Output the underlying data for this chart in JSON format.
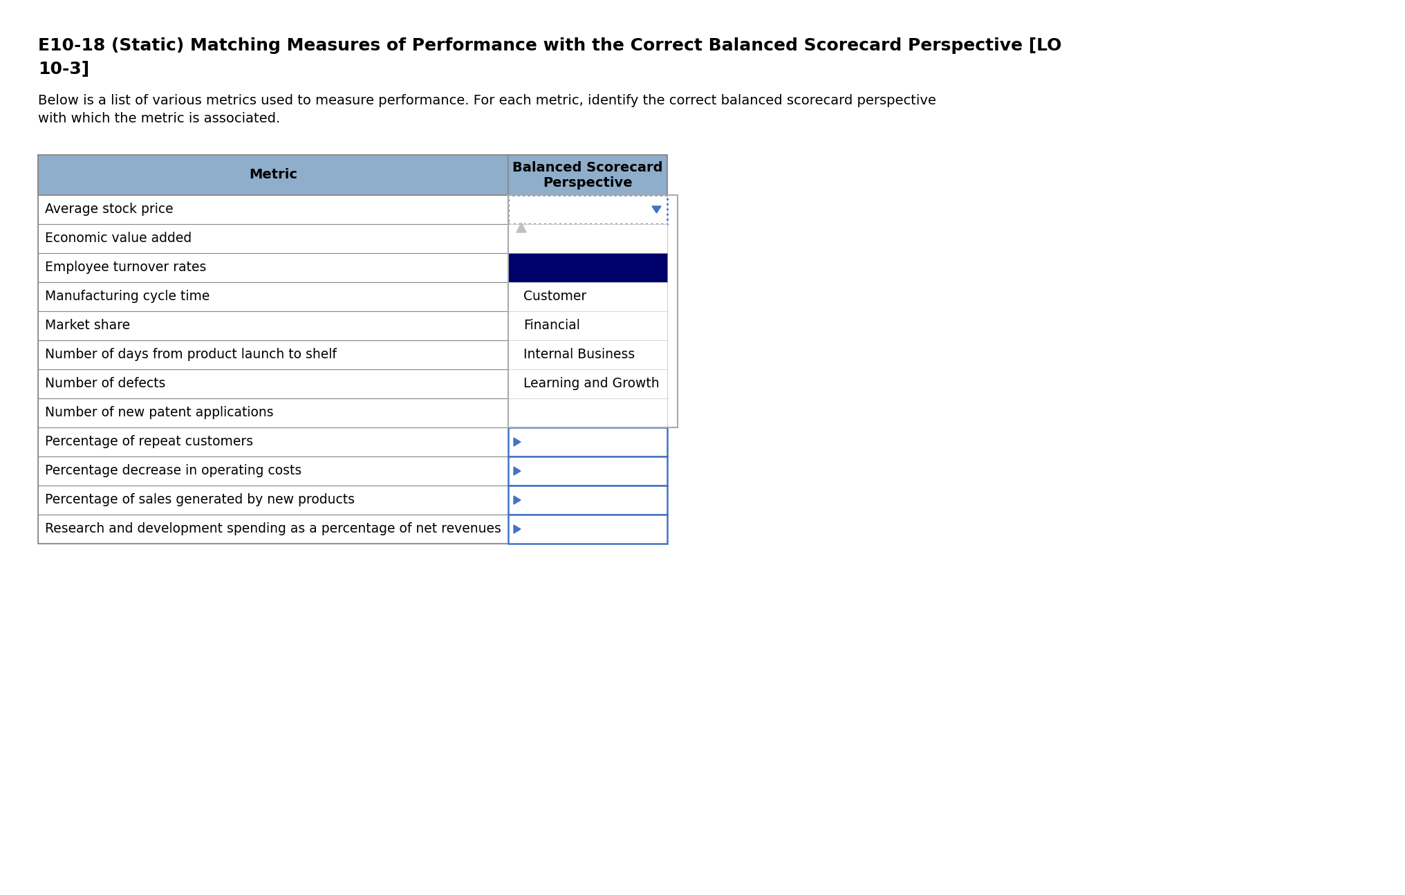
{
  "title_line1": "E10-18 (Static) Matching Measures of Performance with the Correct Balanced Scorecard Perspective [LO",
  "title_line2": "10-3]",
  "subtitle_line1": "Below is a list of various metrics used to measure performance. For each metric, identify the correct balanced scorecard perspective",
  "subtitle_line2": "with which the metric is associated.",
  "col1_header": "Metric",
  "col2_header": "Balanced Scorecard\nPerspective",
  "metrics": [
    "Average stock price",
    "Economic value added",
    "Employee turnover rates",
    "Manufacturing cycle time",
    "Market share",
    "Number of days from product launch to shelf",
    "Number of defects",
    "Number of new patent applications",
    "Percentage of repeat customers",
    "Percentage decrease in operating costs",
    "Percentage of sales generated by new products",
    "Research and development spending as a percentage of net revenues"
  ],
  "dropdown_options_map": {
    "3": "Customer",
    "4": "Financial",
    "5": "Internal Business",
    "6": "Learning and Growth"
  },
  "header_bg": "#8faecb",
  "table_border_color": "#888888",
  "dropdown_border_color": "#4472c4",
  "dropdown_selected_bg": "#00006a",
  "background_color": "#ffffff",
  "title_fontsize": 18,
  "subtitle_fontsize": 14,
  "table_fontsize": 13.5,
  "header_fontsize": 14
}
